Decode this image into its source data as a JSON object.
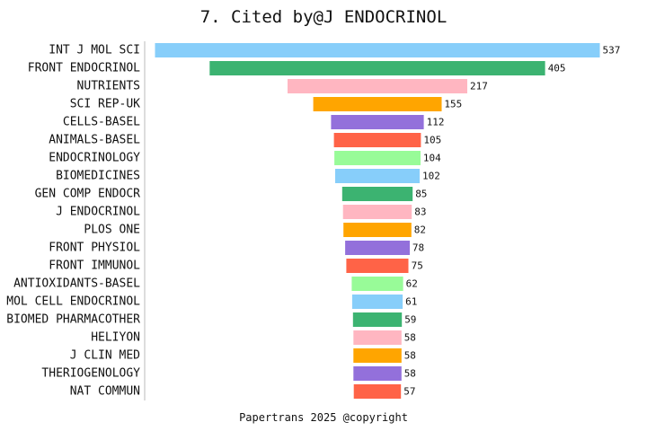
{
  "chart_data": {
    "type": "bar",
    "orientation": "horizontal",
    "style": "centered-funnel",
    "title": "7. Cited by@J ENDOCRINOL",
    "categories": [
      "INT J MOL SCI",
      "FRONT ENDOCRINOL",
      "NUTRIENTS",
      "SCI REP-UK",
      "CELLS-BASEL",
      "ANIMALS-BASEL",
      "ENDOCRINOLOGY",
      "BIOMEDICINES",
      "GEN COMP ENDOCR",
      "J ENDOCRINOL",
      "PLOS ONE",
      "FRONT PHYSIOL",
      "FRONT IMMUNOL",
      "ANTIOXIDANTS-BASEL",
      "MOL CELL ENDOCRINOL",
      "BIOMED PHARMACOTHER",
      "HELIYON",
      "J CLIN MED",
      "THERIOGENOLOGY",
      "NAT COMMUN"
    ],
    "values": [
      537,
      405,
      217,
      155,
      112,
      105,
      104,
      102,
      85,
      83,
      82,
      78,
      75,
      62,
      61,
      59,
      58,
      58,
      58,
      57
    ],
    "colors": [
      "#87CEFA",
      "#3CB371",
      "#FFB6C1",
      "#FFA500",
      "#9370DB",
      "#FF6347",
      "#98FB98"
    ],
    "grid": false,
    "legend": "none"
  },
  "footer": "Papertrans 2025 @copyright"
}
